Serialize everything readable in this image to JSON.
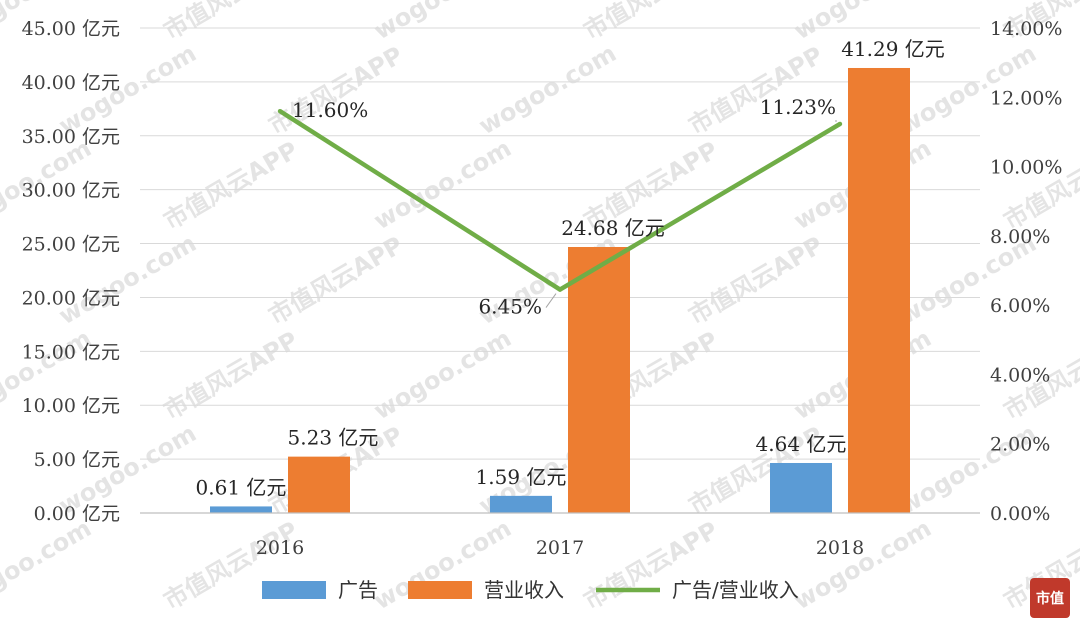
{
  "chart_data": {
    "type": "bar",
    "categories": [
      "2016",
      "2017",
      "2018"
    ],
    "series": [
      {
        "name": "广告",
        "kind": "bar",
        "axis": "left",
        "color": "#5b9bd5",
        "values": [
          0.61,
          1.59,
          4.64
        ],
        "labels": [
          "0.61 亿元",
          "1.59 亿元",
          "4.64 亿元"
        ]
      },
      {
        "name": "营业收入",
        "kind": "bar",
        "axis": "left",
        "color": "#ed7d31",
        "values": [
          5.23,
          24.68,
          41.29
        ],
        "labels": [
          "5.23 亿元",
          "24.68 亿元",
          "41.29 亿元"
        ]
      },
      {
        "name": "广告/营业收入",
        "kind": "line",
        "axis": "right",
        "color": "#70ad47",
        "values": [
          11.6,
          6.45,
          11.23
        ],
        "labels": [
          "11.60%",
          "6.45%",
          "11.23%"
        ]
      }
    ],
    "left_axis": {
      "ylim": [
        0,
        45
      ],
      "ticks": [
        0,
        5,
        10,
        15,
        20,
        25,
        30,
        35,
        40,
        45
      ],
      "tick_labels": [
        "0.00 亿元",
        "5.00 亿元",
        "10.00 亿元",
        "15.00 亿元",
        "20.00 亿元",
        "25.00 亿元",
        "30.00 亿元",
        "35.00 亿元",
        "40.00 亿元",
        "45.00 亿元"
      ]
    },
    "right_axis": {
      "ylim": [
        0,
        14
      ],
      "ticks": [
        0,
        2,
        4,
        6,
        8,
        10,
        12,
        14
      ],
      "tick_labels": [
        "0.00%",
        "2.00%",
        "4.00%",
        "6.00%",
        "8.00%",
        "10.00%",
        "12.00%",
        "14.00%"
      ]
    },
    "grid": true,
    "legend": "bottom",
    "title": "",
    "xlabel": "",
    "ylabel": ""
  },
  "watermark": {
    "texts": [
      "wogoo.com",
      "市值风云APP"
    ]
  },
  "logo": {
    "text": "市值"
  }
}
